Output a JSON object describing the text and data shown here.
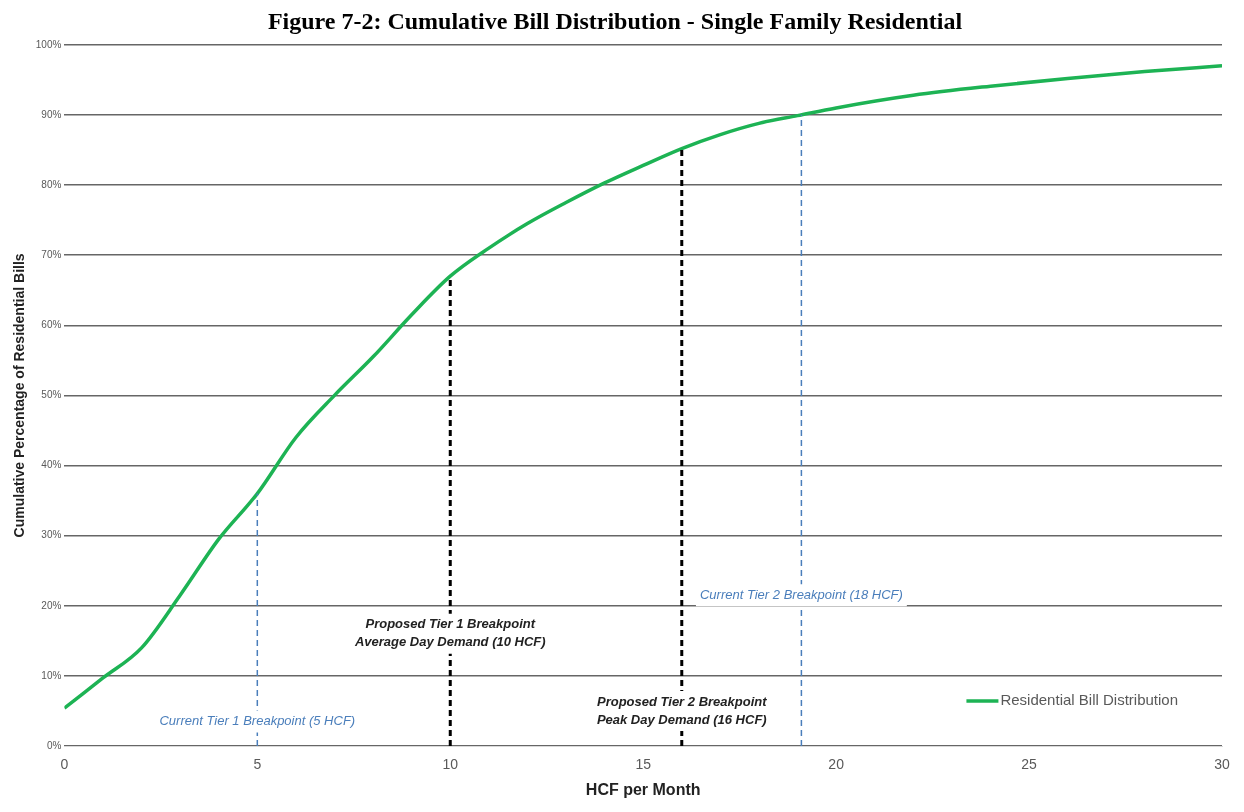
{
  "chart_data": {
    "type": "line",
    "title": "Figure 7-2: Cumulative Bill Distribution - Single Family Residential",
    "xlabel": "HCF per Month",
    "ylabel": "Cumulative Percentage of Residential Bills",
    "x": [
      0,
      1,
      2,
      3,
      4,
      5,
      6,
      7,
      8,
      9,
      10,
      11,
      12,
      13,
      14,
      15,
      16,
      17,
      18,
      19,
      20,
      22,
      24,
      26,
      28,
      30
    ],
    "series": [
      {
        "name": "Residential Bill Distribution",
        "color": "#1db354",
        "values": [
          5.4,
          9.7,
          14,
          21.5,
          29.5,
          36,
          44,
          50,
          55.5,
          61.5,
          67,
          71,
          74.5,
          77.5,
          80.3,
          82.8,
          85.2,
          87.2,
          88.8,
          89.9,
          91,
          92.8,
          94.1,
          95.2,
          96.2,
          97
        ]
      }
    ],
    "xlim": [
      0,
      30
    ],
    "xticks": [
      0,
      5,
      10,
      15,
      20,
      25,
      30
    ],
    "ylim": [
      0,
      100
    ],
    "yticks": [
      {
        "value": 0,
        "label": "0%"
      },
      {
        "value": 10,
        "label": "10%"
      },
      {
        "value": 20,
        "label": "20%"
      },
      {
        "value": 30,
        "label": "30%"
      },
      {
        "value": 40,
        "label": "40%"
      },
      {
        "value": 50,
        "label": "50%"
      },
      {
        "value": 60,
        "label": "60%"
      },
      {
        "value": 70,
        "label": "70%"
      },
      {
        "value": 80,
        "label": "80%"
      },
      {
        "value": 90,
        "label": "90%"
      },
      {
        "value": 100,
        "label": "100%"
      }
    ],
    "ref_lines": [
      {
        "axis": "x",
        "value": 5,
        "label": "Current Tier 1 Breakpoint (5 HCF)",
        "color": "#4a7ebb",
        "line_style": "dashed"
      },
      {
        "axis": "x",
        "value": 10,
        "label": "Proposed Tier 1 Breakpoint\nAverage Day Demand (10 HCF)",
        "color": "#000000",
        "line_style": "dashed"
      },
      {
        "axis": "x",
        "value": 16,
        "label": "Proposed Tier 2 Breakpoint\nPeak Day Demand (16 HCF)",
        "color": "#000000",
        "line_style": "dashed"
      },
      {
        "axis": "x",
        "value": 19.1,
        "label": "Current Tier 2 Breakpoint (18 HCF)",
        "color": "#4a7ebb",
        "line_style": "dashed"
      }
    ],
    "grid": "y",
    "legend": "bottom right",
    "marker": "none",
    "line_style": "solid"
  }
}
